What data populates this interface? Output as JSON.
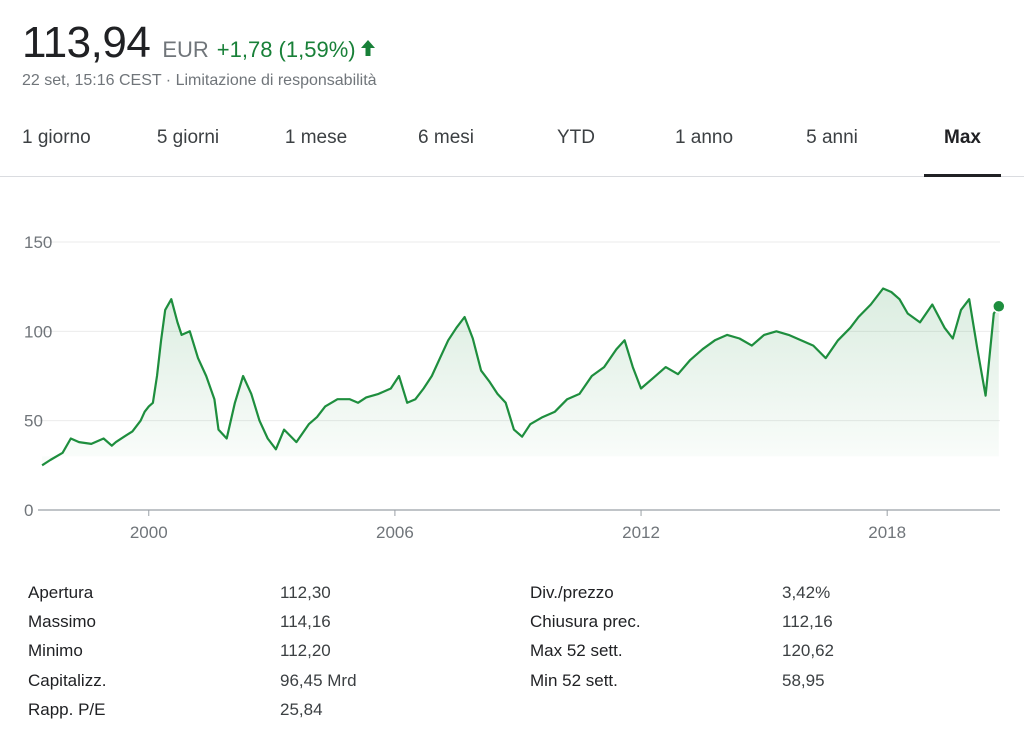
{
  "quote": {
    "price": "113,94",
    "currency": "EUR",
    "change": "+1,78 (1,59%)",
    "direction_icon": "arrow-up-icon",
    "timestamp": "22 set, 15:16 CEST",
    "separator": "·",
    "disclaimer": "Limitazione di responsabilità",
    "color_positive": "#188038"
  },
  "tabs": [
    {
      "label": "1 giorno",
      "active": false
    },
    {
      "label": "5 giorni",
      "active": false
    },
    {
      "label": "1 mese",
      "active": false
    },
    {
      "label": "6 mesi",
      "active": false
    },
    {
      "label": "YTD",
      "active": false
    },
    {
      "label": "1 anno",
      "active": false
    },
    {
      "label": "5 anni",
      "active": false
    },
    {
      "label": "Max",
      "active": true
    }
  ],
  "chart_data": {
    "type": "area",
    "x_unit": "year",
    "xlim": [
      1997.3,
      2020.75
    ],
    "ylim": [
      0,
      150
    ],
    "y_ticks": [
      "0",
      "50",
      "100",
      "150"
    ],
    "x_ticks": [
      "2000",
      "2006",
      "2012",
      "2018"
    ],
    "grid": true,
    "line_color": "#1e8e3e",
    "series": [
      {
        "x": [
          1997.4,
          1997.6,
          1997.9,
          1998.1,
          1998.3,
          1998.6,
          1998.9,
          1999.1,
          1999.2,
          1999.4,
          1999.6,
          1999.8,
          1999.9,
          2000.0,
          2000.1,
          2000.2,
          2000.3,
          2000.4,
          2000.55,
          2000.7,
          2000.8,
          2001.0,
          2001.2,
          2001.4,
          2001.6,
          2001.7,
          2001.9,
          2002.1,
          2002.3,
          2002.5,
          2002.7,
          2002.9,
          2003.1,
          2003.3,
          2003.6,
          2003.9,
          2004.1,
          2004.3,
          2004.6,
          2004.9,
          2005.1,
          2005.3,
          2005.6,
          2005.9,
          2006.1,
          2006.3,
          2006.5,
          2006.7,
          2006.9,
          2007.1,
          2007.3,
          2007.5,
          2007.7,
          2007.9,
          2008.1,
          2008.3,
          2008.5,
          2008.7,
          2008.9,
          2009.1,
          2009.3,
          2009.6,
          2009.9,
          2010.2,
          2010.5,
          2010.8,
          2011.1,
          2011.4,
          2011.6,
          2011.8,
          2012.0,
          2012.3,
          2012.6,
          2012.9,
          2013.2,
          2013.5,
          2013.8,
          2014.1,
          2014.4,
          2014.7,
          2015.0,
          2015.3,
          2015.6,
          2015.9,
          2016.2,
          2016.5,
          2016.8,
          2017.1,
          2017.3,
          2017.6,
          2017.9,
          2018.1,
          2018.3,
          2018.5,
          2018.8,
          2019.1,
          2019.4,
          2019.6,
          2019.8,
          2020.0,
          2020.2,
          2020.4,
          2020.6,
          2020.72
        ],
        "y": [
          25,
          28,
          32,
          40,
          38,
          37,
          40,
          36,
          38,
          41,
          44,
          50,
          55,
          58,
          60,
          75,
          95,
          112,
          118,
          105,
          98,
          100,
          85,
          75,
          62,
          45,
          40,
          60,
          75,
          65,
          50,
          40,
          34,
          45,
          38,
          48,
          52,
          58,
          62,
          62,
          60,
          63,
          65,
          68,
          75,
          60,
          62,
          68,
          75,
          85,
          95,
          102,
          108,
          96,
          78,
          72,
          65,
          60,
          45,
          41,
          48,
          52,
          55,
          62,
          65,
          75,
          80,
          90,
          95,
          80,
          68,
          74,
          80,
          76,
          84,
          90,
          95,
          98,
          96,
          92,
          98,
          100,
          98,
          95,
          92,
          85,
          95,
          102,
          108,
          115,
          124,
          122,
          118,
          110,
          105,
          115,
          102,
          96,
          112,
          118,
          90,
          64,
          110,
          114
        ]
      }
    ]
  },
  "stats": {
    "left": [
      {
        "label": "Apertura",
        "value": "112,30"
      },
      {
        "label": "Massimo",
        "value": "114,16"
      },
      {
        "label": "Minimo",
        "value": "112,20"
      },
      {
        "label": "Capitalizz.",
        "value": "96,45 Mrd"
      },
      {
        "label": "Rapp. P/E",
        "value": "25,84"
      }
    ],
    "right": [
      {
        "label": "Div./prezzo",
        "value": "3,42%"
      },
      {
        "label": "Chiusura prec.",
        "value": "112,16"
      },
      {
        "label": "Max 52 sett.",
        "value": "120,62"
      },
      {
        "label": "Min 52 sett.",
        "value": "58,95"
      }
    ]
  }
}
